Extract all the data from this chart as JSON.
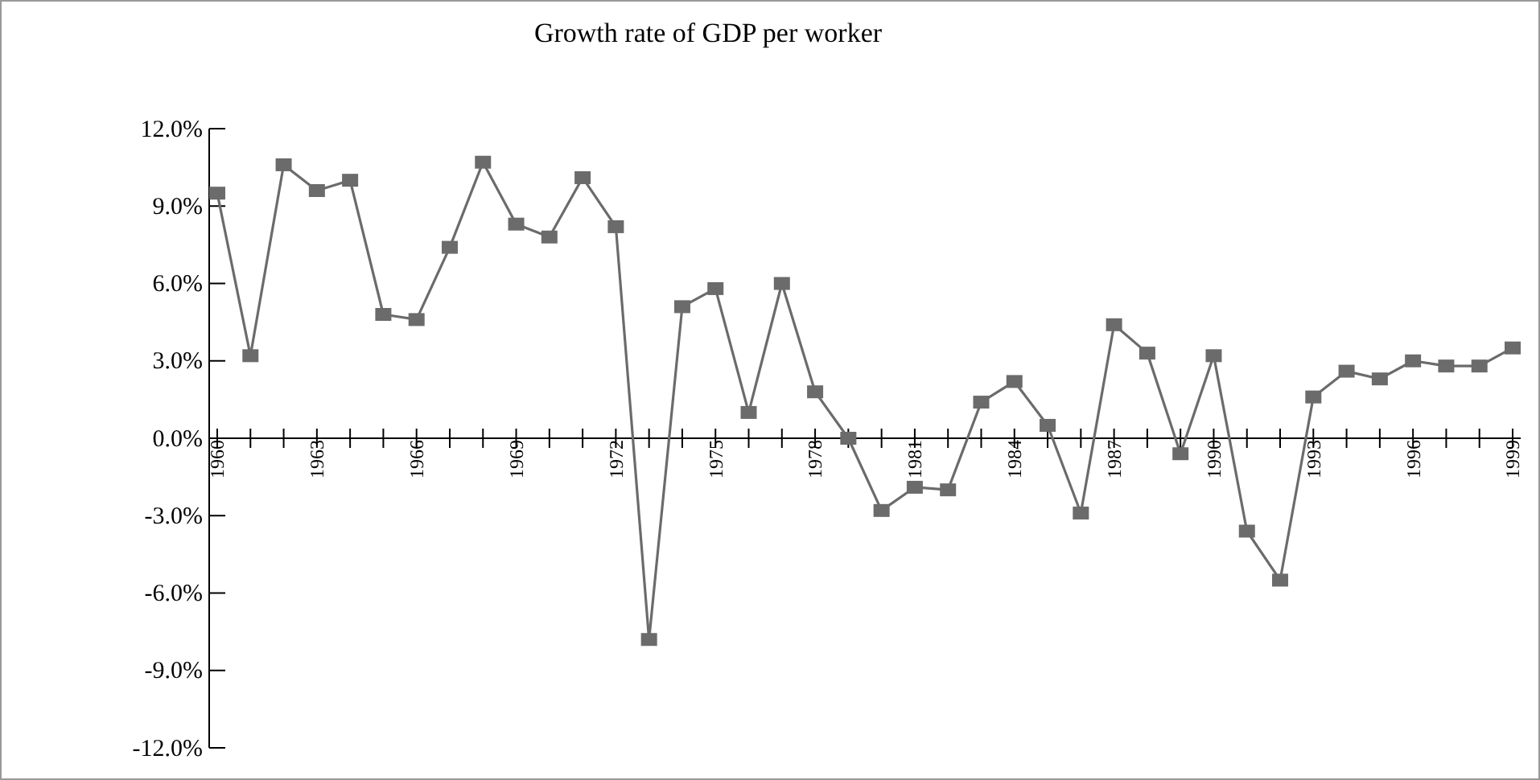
{
  "chart_data": {
    "type": "line",
    "title": "Growth rate of GDP per worker",
    "categories": [
      "1960",
      null,
      null,
      "1963",
      null,
      null,
      "1966",
      null,
      null,
      "1969",
      null,
      null,
      "1972",
      null,
      null,
      "1975",
      null,
      null,
      "1978",
      null,
      null,
      "1981",
      null,
      null,
      "1984",
      null,
      null,
      "1987",
      null,
      null,
      "1990",
      null,
      null,
      "1993",
      null,
      null,
      "1996",
      null,
      null,
      "1999"
    ],
    "series": [
      {
        "color": "#6b6b6b",
        "values": [
          9.5,
          3.2,
          10.6,
          9.6,
          10.0,
          4.8,
          4.6,
          7.4,
          10.7,
          8.3,
          7.8,
          10.1,
          8.2,
          -7.8,
          5.1,
          5.8,
          1.0,
          6.0,
          1.8,
          0.0,
          -2.8,
          -1.9,
          -2.0,
          1.4,
          2.2,
          0.5,
          -2.9,
          4.4,
          3.3,
          -0.6,
          3.2,
          -3.6,
          -5.5,
          1.6,
          2.6,
          2.3,
          3.0,
          2.8,
          2.8,
          3.5
        ]
      }
    ],
    "ylim": [
      -12,
      12
    ],
    "yticks": [
      {
        "value": -12,
        "label": "-12.0%"
      },
      {
        "value": -9,
        "label": "-9.0%"
      },
      {
        "value": -6,
        "label": "-6.0%"
      },
      {
        "value": -3,
        "label": "-3.0%"
      },
      {
        "value": 0,
        "label": "0.0%"
      },
      {
        "value": 3,
        "label": "3.0%"
      },
      {
        "value": 6,
        "label": "6.0%"
      },
      {
        "value": 9,
        "label": "9.0%"
      },
      {
        "value": 12,
        "label": "12.0%"
      }
    ],
    "grid": false,
    "marker": "square",
    "line_style": "solid"
  }
}
